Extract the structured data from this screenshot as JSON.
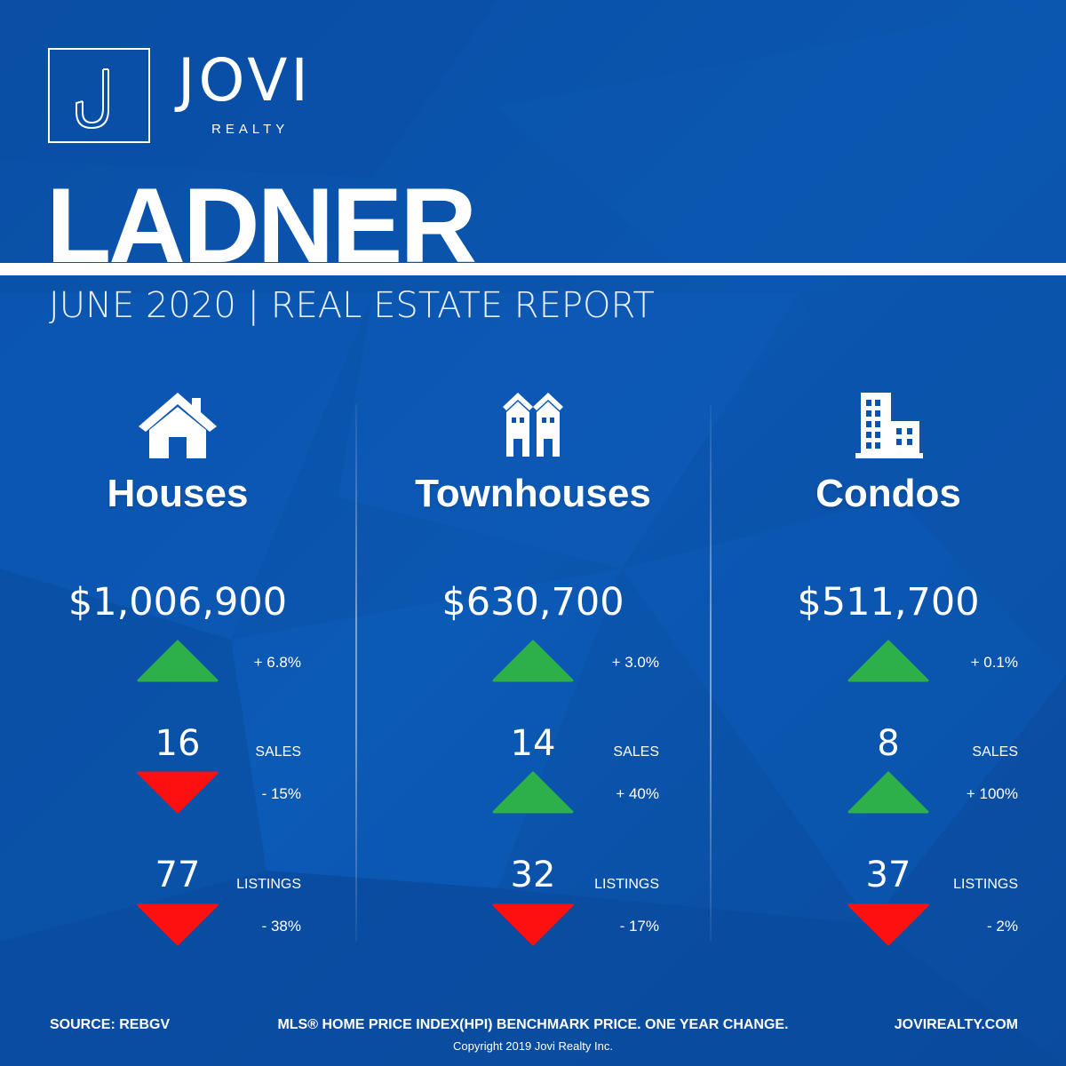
{
  "brand": {
    "logo_name": "JOVI",
    "logo_sub": "REALTY",
    "logo_mark": "J"
  },
  "title": "LADNER",
  "subtitle": "JUNE 2020 | REAL ESTATE REPORT",
  "colors": {
    "background": "#0750a8",
    "up": "#2db04a",
    "down": "#ff1010",
    "text": "#ffffff"
  },
  "columns": [
    {
      "icon": "house-icon",
      "category": "Houses",
      "price": "$1,006,900",
      "price_change": {
        "direction": "up",
        "text": "+ 6.8%"
      },
      "sales": {
        "value": "16",
        "label": "SALES",
        "direction": "down",
        "change": "- 15%"
      },
      "listings": {
        "value": "77",
        "label": "LISTINGS",
        "direction": "down",
        "change": "- 38%"
      }
    },
    {
      "icon": "townhouse-icon",
      "category": "Townhouses",
      "price": "$630,700",
      "price_change": {
        "direction": "up",
        "text": "+ 3.0%"
      },
      "sales": {
        "value": "14",
        "label": "SALES",
        "direction": "up",
        "change": "+ 40%"
      },
      "listings": {
        "value": "32",
        "label": "LISTINGS",
        "direction": "down",
        "change": "- 17%"
      }
    },
    {
      "icon": "condo-building-icon",
      "category": "Condos",
      "price": "$511,700",
      "price_change": {
        "direction": "up",
        "text": "+ 0.1%"
      },
      "sales": {
        "value": "8",
        "label": "SALES",
        "direction": "up",
        "change": "+ 100%"
      },
      "listings": {
        "value": "37",
        "label": "LISTINGS",
        "direction": "down",
        "change": "- 2%"
      }
    }
  ],
  "footer": {
    "source": "SOURCE:  REBGV",
    "note": "MLS® HOME PRICE INDEX(HPI) BENCHMARK PRICE. ONE YEAR CHANGE.",
    "website": "JOVIREALTY.COM",
    "copyright": "Copyright 2019 Jovi Realty Inc."
  }
}
